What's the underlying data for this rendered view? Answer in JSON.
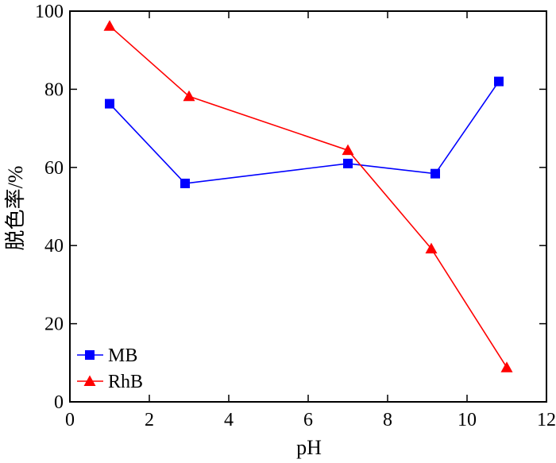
{
  "chart_data": {
    "type": "line",
    "xlabel": "pH",
    "ylabel": "脱色率/%",
    "xlim": [
      0,
      12
    ],
    "ylim": [
      0,
      100
    ],
    "xticks": [
      0,
      2,
      4,
      6,
      8,
      10,
      12
    ],
    "yticks": [
      0,
      20,
      40,
      60,
      80,
      100
    ],
    "grid": false,
    "legend_position": "bottom-left",
    "series": [
      {
        "name": "MB",
        "color": "#0000ff",
        "marker": "square",
        "points": [
          {
            "x": 1.0,
            "y": 76.3
          },
          {
            "x": 2.9,
            "y": 55.9
          },
          {
            "x": 7.0,
            "y": 61.0
          },
          {
            "x": 9.2,
            "y": 58.4
          },
          {
            "x": 10.8,
            "y": 82.0
          }
        ]
      },
      {
        "name": "RhB",
        "color": "#ff0000",
        "marker": "triangle",
        "points": [
          {
            "x": 1.0,
            "y": 96.2
          },
          {
            "x": 3.0,
            "y": 78.2
          },
          {
            "x": 7.0,
            "y": 64.4
          },
          {
            "x": 9.1,
            "y": 39.2
          },
          {
            "x": 11.0,
            "y": 8.8
          }
        ]
      }
    ]
  }
}
